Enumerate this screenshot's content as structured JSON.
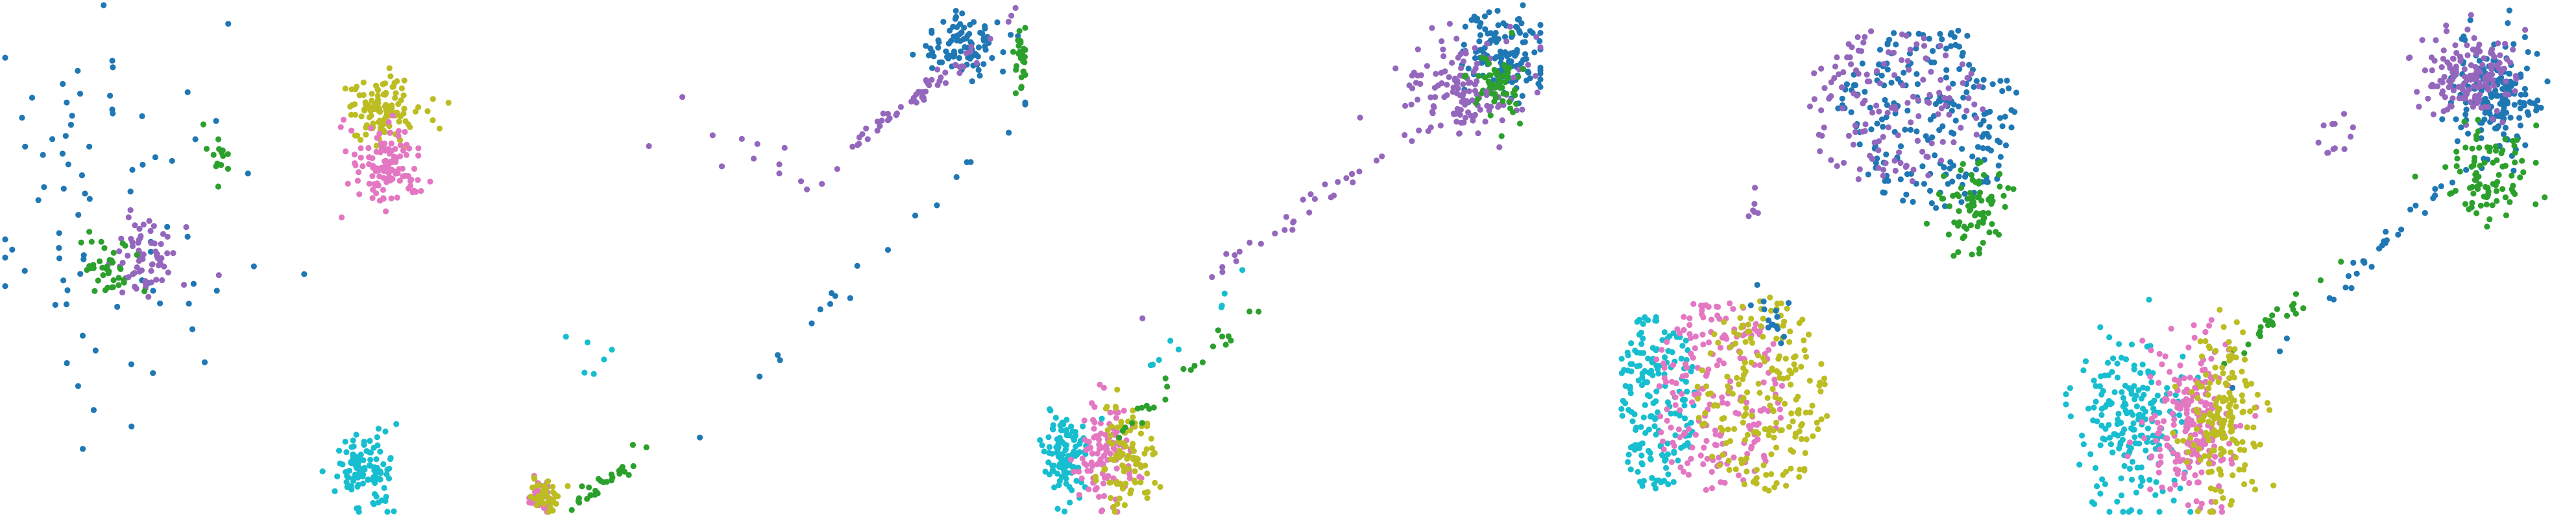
{
  "figure": {
    "panel_count": 5,
    "marker": "filled-circle",
    "axes_visible": false
  },
  "palette": {
    "blue": "#1f77b4",
    "purple": "#9467bd",
    "green": "#2ca02c",
    "cyan": "#17becf",
    "pink": "#e377c2",
    "olive": "#bcbd22"
  },
  "chart_data": [
    {
      "type": "scatter",
      "title": "",
      "xlabel": "",
      "ylabel": "",
      "xlim": [
        0,
        100
      ],
      "ylim": [
        0,
        100
      ],
      "grid": false,
      "clusters": [
        {
          "color": "blue",
          "cx": 22,
          "cy": 55,
          "sx": 14,
          "sy": 22,
          "n": 70,
          "shape": "scattered"
        },
        {
          "color": "purple",
          "cx": 28,
          "cy": 51,
          "sx": 5,
          "sy": 6,
          "n": 70,
          "shape": "blob"
        },
        {
          "color": "green",
          "cx": 20,
          "cy": 48,
          "sx": 4,
          "sy": 5,
          "n": 40,
          "shape": "blob"
        },
        {
          "color": "green",
          "cx": 42,
          "cy": 70,
          "sx": 2,
          "sy": 3,
          "n": 14,
          "shape": "blob"
        },
        {
          "color": "blue",
          "cx": 8,
          "cy": 80,
          "sx": 6,
          "sy": 7,
          "n": 10,
          "shape": "scattered"
        },
        {
          "color": "olive",
          "cx": 75,
          "cy": 79,
          "sx": 5,
          "sy": 5,
          "n": 120,
          "shape": "blob"
        },
        {
          "color": "pink",
          "cx": 75,
          "cy": 68,
          "sx": 5,
          "sy": 6,
          "n": 120,
          "shape": "blob"
        },
        {
          "color": "cyan",
          "cx": 71,
          "cy": 8,
          "sx": 4,
          "sy": 5,
          "n": 110,
          "shape": "blob"
        }
      ]
    },
    {
      "type": "scatter",
      "title": "",
      "xlabel": "",
      "ylabel": "",
      "xlim": [
        0,
        100
      ],
      "ylim": [
        0,
        100
      ],
      "grid": false,
      "clusters": [
        {
          "color": "blue",
          "cx": 88,
          "cy": 92,
          "sx": 6,
          "sy": 4,
          "n": 90,
          "shape": "blob"
        },
        {
          "color": "purple",
          "cx": 80,
          "cy": 83,
          "sx": 10,
          "sy": 8,
          "n": 60,
          "shape": "diagonal"
        },
        {
          "color": "green",
          "cx": 99,
          "cy": 90,
          "sx": 1,
          "sy": 6,
          "n": 30,
          "shape": "blob"
        },
        {
          "color": "blue",
          "cx": 60,
          "cy": 40,
          "sx": 20,
          "sy": 20,
          "n": 20,
          "shape": "diagonal"
        },
        {
          "color": "green",
          "cx": 17,
          "cy": 6,
          "sx": 5,
          "sy": 4,
          "n": 30,
          "shape": "diagonal"
        },
        {
          "color": "pink",
          "cx": 4,
          "cy": 3,
          "sx": 2,
          "sy": 2,
          "n": 40,
          "shape": "blob"
        },
        {
          "color": "olive",
          "cx": 5,
          "cy": 3,
          "sx": 2,
          "sy": 2,
          "n": 40,
          "shape": "blob"
        },
        {
          "color": "purple",
          "cx": 45,
          "cy": 72,
          "sx": 10,
          "sy": 6,
          "n": 10,
          "shape": "scattered"
        },
        {
          "color": "cyan",
          "cx": 13,
          "cy": 30,
          "sx": 4,
          "sy": 10,
          "n": 6,
          "shape": "scattered"
        }
      ]
    },
    {
      "type": "scatter",
      "title": "",
      "xlabel": "",
      "ylabel": "",
      "xlim": [
        0,
        100
      ],
      "ylim": [
        0,
        100
      ],
      "grid": false,
      "clusters": [
        {
          "color": "blue",
          "cx": 93,
          "cy": 90,
          "sx": 6,
          "sy": 6,
          "n": 140,
          "shape": "blob"
        },
        {
          "color": "purple",
          "cx": 85,
          "cy": 84,
          "sx": 9,
          "sy": 8,
          "n": 130,
          "shape": "blob"
        },
        {
          "color": "green",
          "cx": 92,
          "cy": 84,
          "sx": 4,
          "sy": 5,
          "n": 60,
          "shape": "blob"
        },
        {
          "color": "purple",
          "cx": 60,
          "cy": 64,
          "sx": 15,
          "sy": 10,
          "n": 40,
          "shape": "diagonal"
        },
        {
          "color": "cyan",
          "cx": 6,
          "cy": 11,
          "sx": 3,
          "sy": 6,
          "n": 110,
          "shape": "blob"
        },
        {
          "color": "pink",
          "cx": 14,
          "cy": 11,
          "sx": 4,
          "sy": 7,
          "n": 110,
          "shape": "blob"
        },
        {
          "color": "olive",
          "cx": 18,
          "cy": 11,
          "sx": 4,
          "sy": 7,
          "n": 90,
          "shape": "blob"
        },
        {
          "color": "green",
          "cx": 28,
          "cy": 26,
          "sx": 8,
          "sy": 7,
          "n": 25,
          "shape": "diagonal"
        },
        {
          "color": "cyan",
          "cx": 30,
          "cy": 35,
          "sx": 8,
          "sy": 8,
          "n": 10,
          "shape": "diagonal"
        }
      ]
    },
    {
      "type": "scatter",
      "title": "",
      "xlabel": "",
      "ylabel": "",
      "xlim": [
        0,
        100
      ],
      "ylim": [
        0,
        100
      ],
      "grid": false,
      "clusters": [
        {
          "color": "blue",
          "cx": 75,
          "cy": 78,
          "sx": 14,
          "sy": 14,
          "n": 220,
          "shape": "ring-top"
        },
        {
          "color": "purple",
          "cx": 68,
          "cy": 80,
          "sx": 14,
          "sy": 12,
          "n": 140,
          "shape": "ring-top"
        },
        {
          "color": "green",
          "cx": 84,
          "cy": 60,
          "sx": 5,
          "sy": 6,
          "n": 80,
          "shape": "blob"
        },
        {
          "color": "cyan",
          "cx": 21,
          "cy": 22,
          "sx": 6,
          "sy": 14,
          "n": 180,
          "shape": "ring-bottom"
        },
        {
          "color": "pink",
          "cx": 33,
          "cy": 23,
          "sx": 10,
          "sy": 15,
          "n": 200,
          "shape": "ring-bottom"
        },
        {
          "color": "olive",
          "cx": 42,
          "cy": 23,
          "sx": 10,
          "sy": 15,
          "n": 200,
          "shape": "ring-bottom"
        },
        {
          "color": "blue",
          "cx": 44,
          "cy": 38,
          "sx": 3,
          "sy": 4,
          "n": 15,
          "shape": "blob"
        },
        {
          "color": "purple",
          "cx": 40,
          "cy": 60,
          "sx": 1,
          "sy": 3,
          "n": 6,
          "shape": "blob"
        }
      ]
    },
    {
      "type": "scatter",
      "title": "",
      "xlabel": "",
      "ylabel": "",
      "xlim": [
        0,
        100
      ],
      "ylim": [
        0,
        100
      ],
      "grid": false,
      "clusters": [
        {
          "color": "blue",
          "cx": 85,
          "cy": 82,
          "sx": 6,
          "sy": 8,
          "n": 180,
          "shape": "blob"
        },
        {
          "color": "purple",
          "cx": 80,
          "cy": 86,
          "sx": 7,
          "sy": 6,
          "n": 150,
          "shape": "blob"
        },
        {
          "color": "green",
          "cx": 84,
          "cy": 66,
          "sx": 6,
          "sy": 6,
          "n": 90,
          "shape": "blob"
        },
        {
          "color": "blue",
          "cx": 60,
          "cy": 50,
          "sx": 10,
          "sy": 10,
          "n": 30,
          "shape": "diagonal"
        },
        {
          "color": "green",
          "cx": 43,
          "cy": 39,
          "sx": 5,
          "sy": 4,
          "n": 25,
          "shape": "diagonal"
        },
        {
          "color": "cyan",
          "cx": 13,
          "cy": 18,
          "sx": 7,
          "sy": 12,
          "n": 200,
          "shape": "blob"
        },
        {
          "color": "pink",
          "cx": 25,
          "cy": 17,
          "sx": 7,
          "sy": 12,
          "n": 220,
          "shape": "blob"
        },
        {
          "color": "olive",
          "cx": 31,
          "cy": 18,
          "sx": 5,
          "sy": 12,
          "n": 170,
          "shape": "blob"
        },
        {
          "color": "purple",
          "cx": 54,
          "cy": 73,
          "sx": 3,
          "sy": 3,
          "n": 12,
          "shape": "blob"
        }
      ]
    }
  ]
}
